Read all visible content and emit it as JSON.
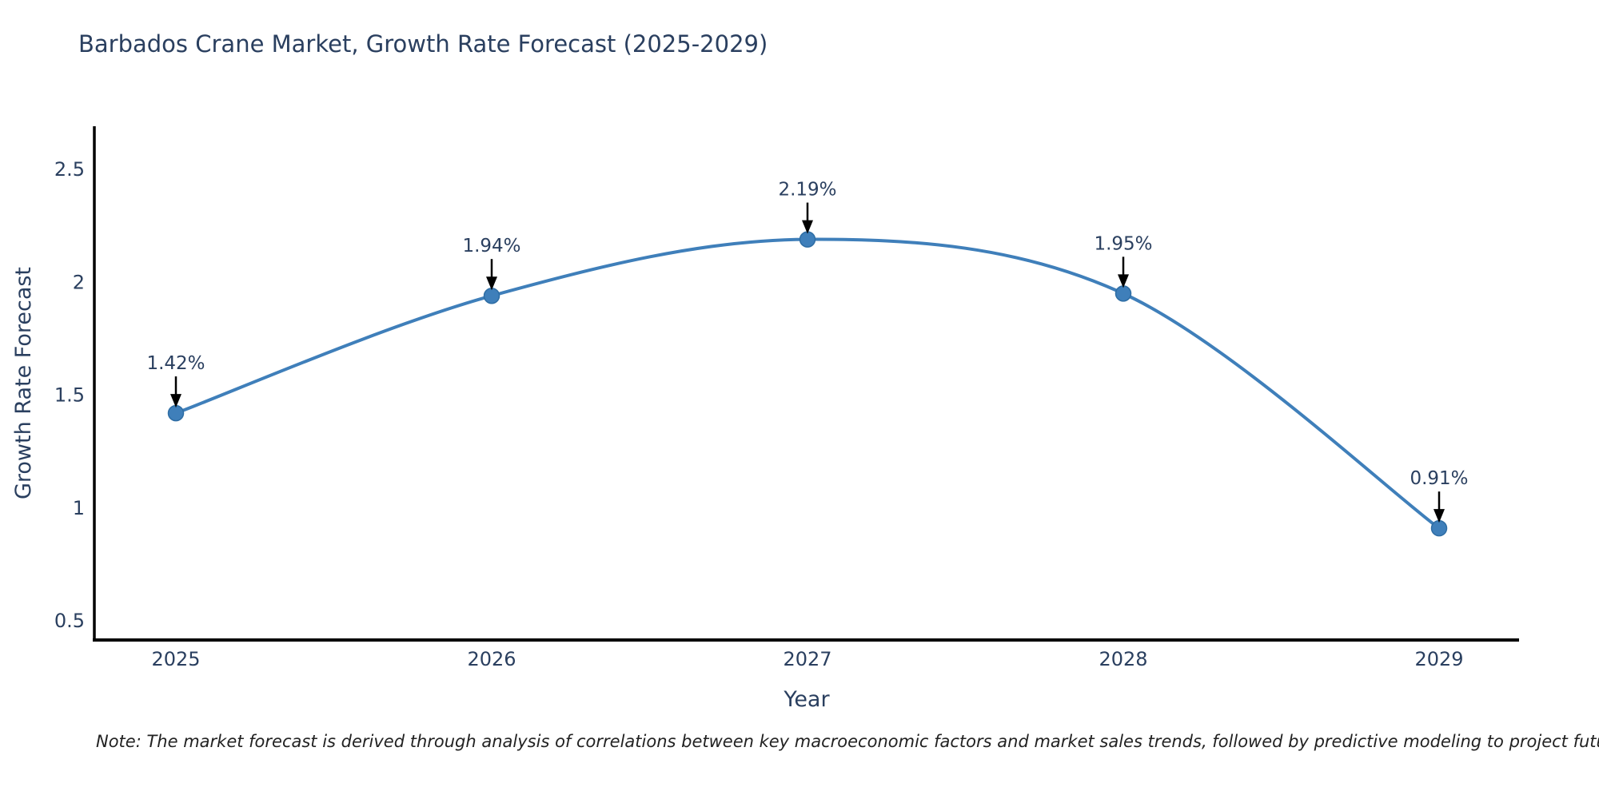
{
  "chart_data": {
    "type": "line",
    "title": "Barbados Crane Market, Growth Rate Forecast (2025-2029)",
    "x": [
      2025,
      2026,
      2027,
      2028,
      2029
    ],
    "series": [
      {
        "name": "Growth Rate Forecast",
        "values": [
          1.42,
          1.94,
          2.19,
          1.95,
          0.91
        ]
      }
    ],
    "point_labels": [
      "1.42%",
      "1.94%",
      "2.19%",
      "1.95%",
      "0.91%"
    ],
    "xlabel": "Year",
    "ylabel": "Growth Rate Forecast",
    "xtick_labels": [
      "2025",
      "2026",
      "2027",
      "2028",
      "2029"
    ],
    "ytick_values": [
      2.5,
      2,
      1.5,
      1,
      0.5
    ],
    "ytick_labels": [
      "2.5",
      "2",
      "1.5",
      "1",
      "0.5"
    ],
    "ylim": [
      0.41,
      2.68
    ],
    "grid": false,
    "legend": "none",
    "line_shape": "spline",
    "colors": {
      "line": "#3f7fba",
      "marker": "#3f7fba",
      "marker_edge": "#2e6da4",
      "axis": "#000000",
      "text": "#2a3f5f",
      "annotation_text": "#2a3f5f",
      "annotation_arrow": "#000000",
      "background": "#ffffff"
    }
  },
  "note": {
    "text": "Note: The market forecast is derived through analysis of correlations between key macroeconomic factors and market sales trends, followed by predictive modeling to project future sales"
  }
}
